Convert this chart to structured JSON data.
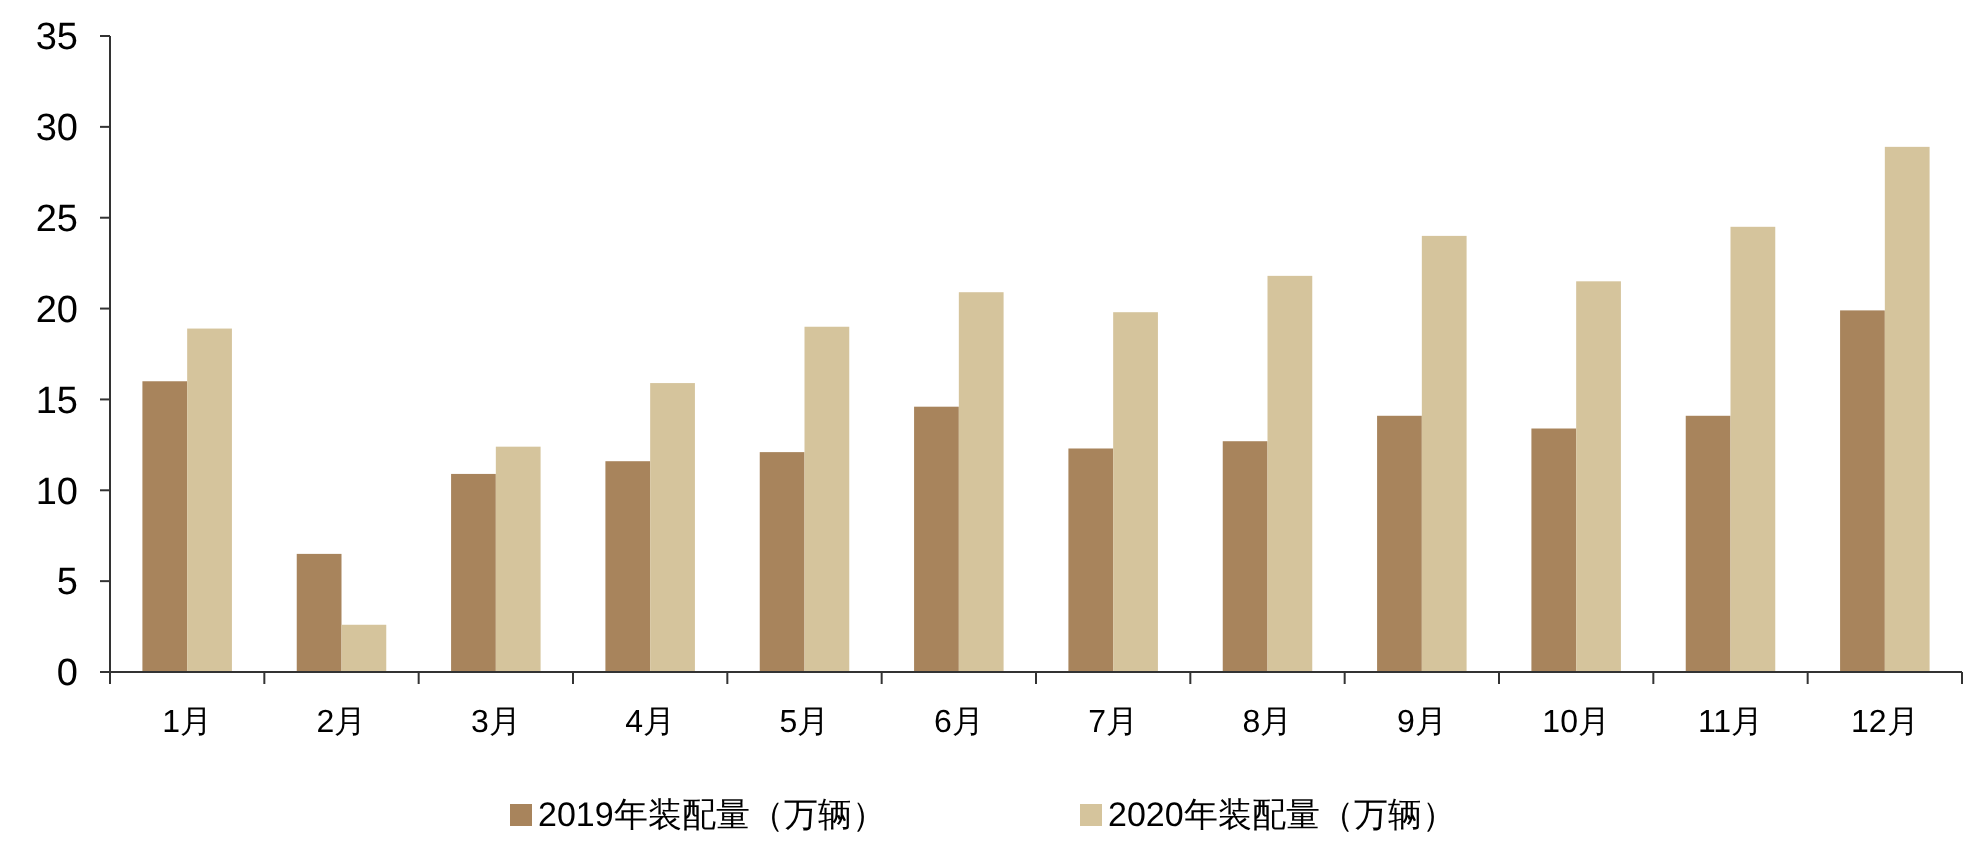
{
  "chart_data": {
    "type": "bar",
    "categories": [
      "1月",
      "2月",
      "3月",
      "4月",
      "5月",
      "6月",
      "7月",
      "8月",
      "9月",
      "10月",
      "11月",
      "12月"
    ],
    "series": [
      {
        "name": "2019年装配量（万辆）",
        "color": "#a8845c",
        "values": [
          16.0,
          6.5,
          10.9,
          11.6,
          12.1,
          14.6,
          12.3,
          12.7,
          14.1,
          13.4,
          14.1,
          19.9
        ]
      },
      {
        "name": "2020年装配量（万辆）",
        "color": "#d5c49c",
        "values": [
          18.9,
          2.6,
          12.4,
          15.9,
          19.0,
          20.9,
          19.8,
          21.8,
          24.0,
          21.5,
          24.5,
          28.9
        ]
      }
    ],
    "ylim": [
      0,
      35
    ],
    "yticks": [
      0,
      5,
      10,
      15,
      20,
      25,
      30,
      35
    ],
    "grid": false,
    "legend": "bottom"
  }
}
